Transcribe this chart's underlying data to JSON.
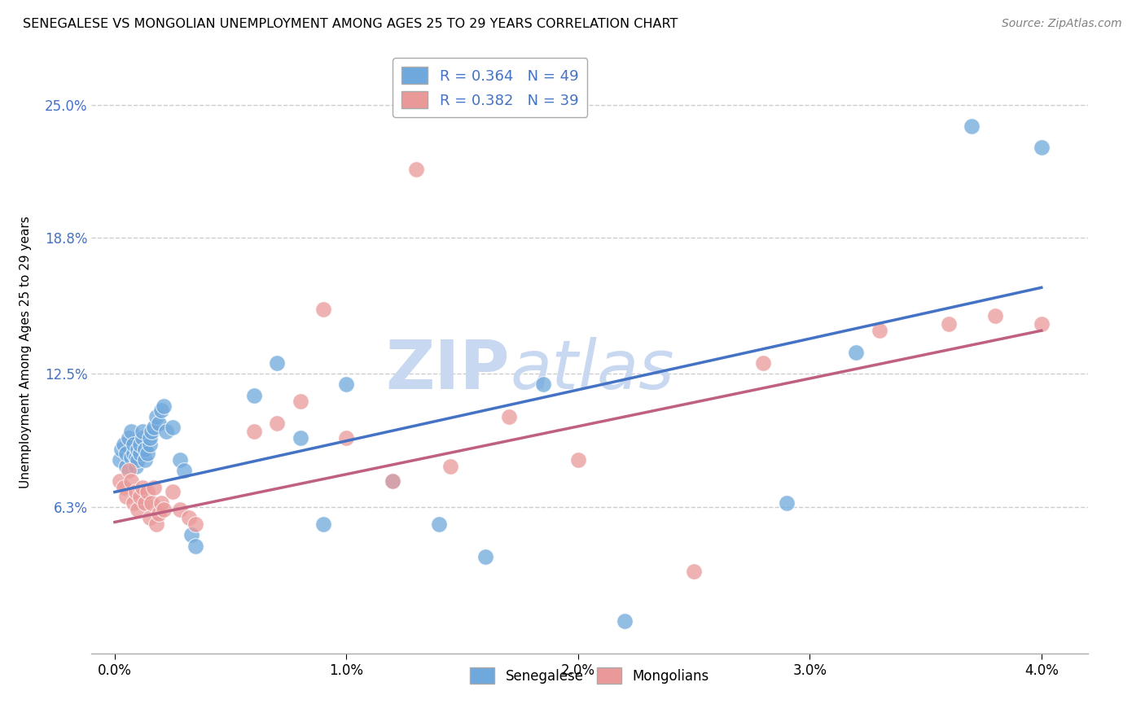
{
  "title": "SENEGALESE VS MONGOLIAN UNEMPLOYMENT AMONG AGES 25 TO 29 YEARS CORRELATION CHART",
  "source": "Source: ZipAtlas.com",
  "ylabel": "Unemployment Among Ages 25 to 29 years",
  "ylabel_ticks": [
    "6.3%",
    "12.5%",
    "18.8%",
    "25.0%"
  ],
  "ylabel_vals": [
    0.063,
    0.125,
    0.188,
    0.25
  ],
  "xlabel_ticks": [
    "0.0%",
    "1.0%",
    "2.0%",
    "3.0%",
    "4.0%"
  ],
  "xlabel_vals": [
    0.0,
    0.01,
    0.02,
    0.03,
    0.04
  ],
  "xmin": -0.001,
  "xmax": 0.042,
  "ymin": -0.005,
  "ymax": 0.275,
  "legend_blue": "R = 0.364   N = 49",
  "legend_pink": "R = 0.382   N = 39",
  "legend_label_blue": "Senegalese",
  "legend_label_pink": "Mongolians",
  "blue_color": "#6fa8dc",
  "pink_color": "#ea9999",
  "blue_line_color": "#4472c4",
  "pink_line_color": "#c06080",
  "watermark_color": "#c8d8f0",
  "background_color": "#ffffff",
  "grid_color": "#cccccc",
  "blue_x": [
    0.0002,
    0.0003,
    0.0004,
    0.0005,
    0.0005,
    0.0006,
    0.0007,
    0.0007,
    0.0008,
    0.0008,
    0.0009,
    0.0009,
    0.001,
    0.001,
    0.0011,
    0.0011,
    0.0012,
    0.0012,
    0.0013,
    0.0013,
    0.0014,
    0.0015,
    0.0015,
    0.0016,
    0.0017,
    0.0018,
    0.0019,
    0.002,
    0.0021,
    0.0022,
    0.0025,
    0.0028,
    0.003,
    0.0033,
    0.0035,
    0.006,
    0.007,
    0.008,
    0.009,
    0.01,
    0.012,
    0.014,
    0.016,
    0.0185,
    0.022,
    0.029,
    0.032,
    0.037,
    0.04
  ],
  "blue_y": [
    0.085,
    0.09,
    0.092,
    0.082,
    0.088,
    0.095,
    0.098,
    0.086,
    0.088,
    0.092,
    0.082,
    0.086,
    0.085,
    0.09,
    0.088,
    0.092,
    0.095,
    0.098,
    0.085,
    0.09,
    0.088,
    0.092,
    0.095,
    0.098,
    0.1,
    0.105,
    0.102,
    0.108,
    0.11,
    0.098,
    0.1,
    0.085,
    0.08,
    0.05,
    0.045,
    0.115,
    0.13,
    0.095,
    0.055,
    0.12,
    0.075,
    0.055,
    0.04,
    0.12,
    0.01,
    0.065,
    0.135,
    0.24,
    0.23
  ],
  "pink_x": [
    0.0002,
    0.0004,
    0.0005,
    0.0006,
    0.0007,
    0.0008,
    0.0009,
    0.001,
    0.0011,
    0.0012,
    0.0013,
    0.0014,
    0.0015,
    0.0016,
    0.0017,
    0.0018,
    0.0019,
    0.002,
    0.0021,
    0.0025,
    0.0028,
    0.0032,
    0.0035,
    0.006,
    0.007,
    0.008,
    0.009,
    0.01,
    0.012,
    0.0145,
    0.017,
    0.02,
    0.028,
    0.033,
    0.036,
    0.038,
    0.04,
    0.013,
    0.025
  ],
  "pink_y": [
    0.075,
    0.072,
    0.068,
    0.08,
    0.075,
    0.065,
    0.07,
    0.062,
    0.068,
    0.072,
    0.065,
    0.07,
    0.058,
    0.065,
    0.072,
    0.055,
    0.06,
    0.065,
    0.062,
    0.07,
    0.062,
    0.058,
    0.055,
    0.098,
    0.102,
    0.112,
    0.155,
    0.095,
    0.075,
    0.082,
    0.105,
    0.085,
    0.13,
    0.145,
    0.148,
    0.152,
    0.148,
    0.22,
    0.033
  ]
}
